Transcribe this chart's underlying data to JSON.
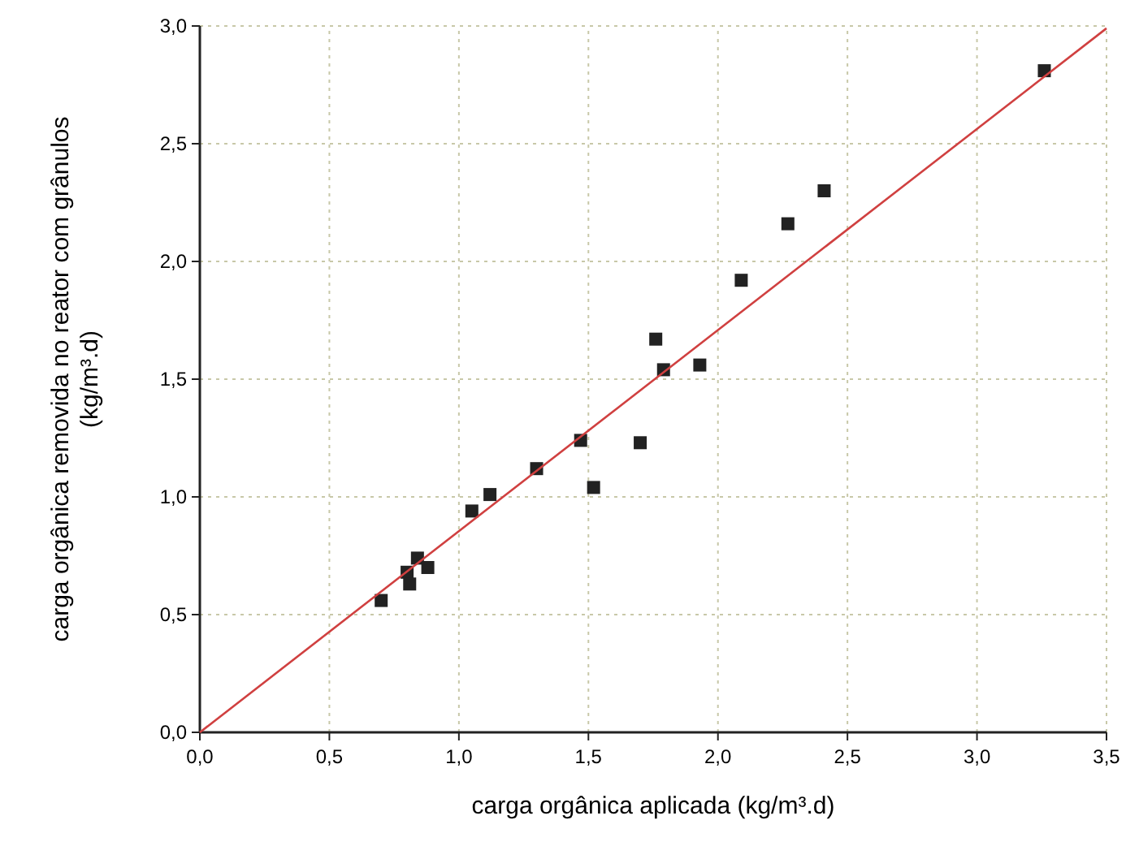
{
  "chart_data": {
    "type": "scatter",
    "xlabel": "carga orgânica aplicada (kg/m³.d)",
    "ylabel": "carga orgânica removida no reator com grânulos\n(kg/m³.d)",
    "xlim": [
      0,
      3.5
    ],
    "ylim": [
      0,
      3.0
    ],
    "xticks": [
      {
        "value": 0,
        "label": "0,0"
      },
      {
        "value": 0.5,
        "label": "0,5"
      },
      {
        "value": 1,
        "label": "1,0"
      },
      {
        "value": 1.5,
        "label": "1,5"
      },
      {
        "value": 2,
        "label": "2,0"
      },
      {
        "value": 2.5,
        "label": "2,5"
      },
      {
        "value": 3,
        "label": "3,0"
      },
      {
        "value": 3.5,
        "label": "3,5"
      }
    ],
    "yticks": [
      {
        "value": 0,
        "label": "0,0"
      },
      {
        "value": 0.5,
        "label": "0,5"
      },
      {
        "value": 1,
        "label": "1,0"
      },
      {
        "value": 1.5,
        "label": "1,5"
      },
      {
        "value": 2,
        "label": "2,0"
      },
      {
        "value": 2.5,
        "label": "2,5"
      },
      {
        "value": 3,
        "label": "3,0"
      }
    ],
    "grid": true,
    "series": [
      {
        "marker": "square",
        "color": "#222222",
        "x": [
          0.7,
          0.8,
          0.81,
          0.84,
          0.88,
          1.05,
          1.12,
          1.3,
          1.47,
          1.52,
          1.7,
          1.76,
          1.79,
          1.93,
          2.09,
          2.27,
          2.41,
          3.26
        ],
        "values": [
          0.56,
          0.68,
          0.63,
          0.74,
          0.7,
          0.94,
          1.01,
          1.12,
          1.24,
          1.04,
          1.23,
          1.67,
          1.54,
          1.56,
          1.92,
          2.16,
          2.3,
          2.81
        ]
      },
      {
        "type": "line",
        "color": "#d04040",
        "x": [
          0,
          3.5
        ],
        "values": [
          0,
          2.99
        ]
      }
    ]
  }
}
